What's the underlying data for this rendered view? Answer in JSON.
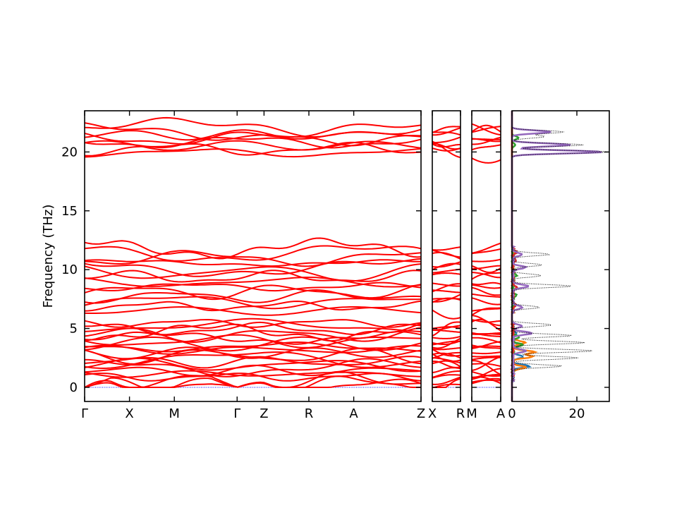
{
  "chart_data": {
    "type": "line",
    "ylabel": "Frequency (THz)",
    "ylim": [
      -1.2,
      23.5
    ],
    "yticks": [
      0,
      5,
      10,
      15,
      20
    ],
    "bands_color": "#ff0000",
    "zero_line_color": "#0000ff",
    "band_groups": [
      {
        "min": 0,
        "max": 5.6,
        "count": 22
      },
      {
        "min": 6.3,
        "max": 12.0,
        "count": 14
      },
      {
        "min": 19.8,
        "max": 22.2,
        "count": 8
      }
    ],
    "panels": [
      {
        "name": "Gamma-X-M-Gamma-Z-R-A-Z",
        "xlim": [
          0,
          7.5
        ],
        "ticks": [
          {
            "x": 0,
            "label": "Γ"
          },
          {
            "x": 1,
            "label": "X"
          },
          {
            "x": 2,
            "label": "M"
          },
          {
            "x": 3.4,
            "label": "Γ"
          },
          {
            "x": 4,
            "label": "Z"
          },
          {
            "x": 5,
            "label": "R"
          },
          {
            "x": 6,
            "label": "A"
          },
          {
            "x": 7.5,
            "label": "Z"
          }
        ],
        "gamma_points": [
          0,
          3.4
        ]
      },
      {
        "name": "X-R",
        "xlim": [
          0,
          1
        ],
        "ticks": [
          {
            "x": 0,
            "label": "X"
          },
          {
            "x": 1,
            "label": "R"
          }
        ],
        "gamma_points": []
      },
      {
        "name": "M-A",
        "xlim": [
          0,
          1
        ],
        "ticks": [
          {
            "x": 0,
            "label": "M"
          },
          {
            "x": 1,
            "label": "A"
          }
        ],
        "gamma_points": []
      }
    ],
    "dos": {
      "xlim": [
        0,
        30
      ],
      "xticks": [
        0,
        20
      ],
      "series": [
        {
          "color": "#1f77b4",
          "peaks": [
            [
              1.8,
              5
            ],
            [
              2.6,
              3
            ],
            [
              3.6,
              2
            ],
            [
              4.6,
              1
            ]
          ]
        },
        {
          "color": "#ff7f0e",
          "peaks": [
            [
              1.7,
              4
            ],
            [
              2.6,
              6
            ],
            [
              3.0,
              7
            ],
            [
              3.8,
              4
            ]
          ]
        },
        {
          "color": "#2ca02c",
          "peaks": [
            [
              3.6,
              3
            ],
            [
              4.3,
              2
            ],
            [
              7.8,
              1
            ],
            [
              9.5,
              1
            ],
            [
              21.2,
              2
            ],
            [
              20.6,
              1
            ]
          ]
        },
        {
          "color": "#d62728",
          "peaks": [
            [
              7.0,
              1
            ],
            [
              8.5,
              1
            ],
            [
              10.8,
              1
            ],
            [
              11.5,
              1
            ]
          ]
        },
        {
          "color": "#9467bd",
          "peaks": [
            [
              3.1,
              4
            ],
            [
              4.6,
              6
            ],
            [
              5.2,
              3
            ],
            [
              6.8,
              3
            ],
            [
              8.6,
              5
            ],
            [
              10.2,
              4
            ],
            [
              11.3,
              3
            ],
            [
              20.0,
              28
            ],
            [
              20.6,
              18
            ],
            [
              21.7,
              12
            ]
          ]
        },
        {
          "color": "#000000",
          "dotted": true,
          "peaks": [
            [
              1.8,
              15
            ],
            [
              2.5,
              20
            ],
            [
              3.1,
              25
            ],
            [
              3.8,
              22
            ],
            [
              4.4,
              18
            ],
            [
              5.3,
              12
            ],
            [
              6.8,
              8
            ],
            [
              8.6,
              18
            ],
            [
              9.5,
              9
            ],
            [
              10.4,
              9
            ],
            [
              11.3,
              11
            ],
            [
              20.0,
              30
            ],
            [
              20.6,
              22
            ],
            [
              21.3,
              10
            ],
            [
              21.7,
              16
            ]
          ]
        }
      ]
    }
  }
}
